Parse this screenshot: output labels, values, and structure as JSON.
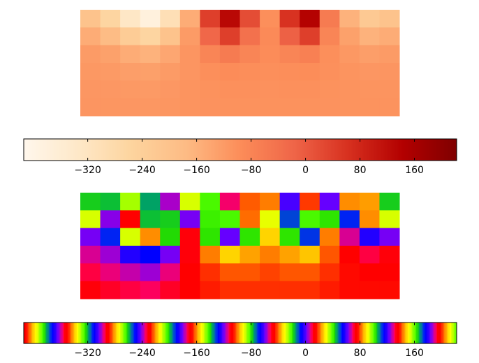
{
  "chart_data": [
    {
      "type": "heatmap",
      "colormap": "OrRd",
      "clim": [
        -414,
        222
      ],
      "ticks": [
        {
          "value": -320,
          "label": "−320"
        },
        {
          "value": -240,
          "label": "−240"
        },
        {
          "value": -160,
          "label": "−160"
        },
        {
          "value": -80,
          "label": "−80"
        },
        0,
        80,
        160
      ],
      "z": [
        [
          -200,
          -260,
          -330,
          -380,
          -300,
          -150,
          40,
          130,
          20,
          -100,
          60,
          140,
          -60,
          -160,
          -220,
          -200
        ],
        [
          -150,
          -180,
          -230,
          -260,
          -200,
          -120,
          -20,
          40,
          -40,
          -90,
          -10,
          40,
          -80,
          -130,
          -160,
          -150
        ],
        [
          -120,
          -130,
          -150,
          -160,
          -140,
          -110,
          -80,
          -60,
          -80,
          -95,
          -80,
          -70,
          -100,
          -115,
          -125,
          -120
        ],
        [
          -115,
          -118,
          -125,
          -128,
          -120,
          -110,
          -100,
          -95,
          -98,
          -100,
          -98,
          -96,
          -102,
          -108,
          -112,
          -110
        ],
        [
          -112,
          -114,
          -116,
          -118,
          -114,
          -108,
          -104,
          -102,
          -102,
          -103,
          -102,
          -102,
          -104,
          -106,
          -108,
          -108
        ],
        [
          -110,
          -111,
          -112,
          -113,
          -111,
          -108,
          -105,
          -104,
          -104,
          -104,
          -104,
          -104,
          -105,
          -106,
          -106,
          -106
        ]
      ]
    },
    {
      "type": "heatmap",
      "colormap": "prism",
      "clim": [
        -414,
        222
      ],
      "ticks": [
        {
          "value": -320,
          "label": "−320"
        },
        {
          "value": -240,
          "label": "−240"
        },
        {
          "value": -160,
          "label": "−160"
        },
        {
          "value": -80,
          "label": "−80"
        },
        0,
        80,
        160
      ],
      "z": [
        [
          -200,
          -260,
          -330,
          -380,
          -300,
          -150,
          40,
          130,
          20,
          -100,
          60,
          140,
          -60,
          -160,
          -220,
          -200
        ],
        [
          -150,
          -180,
          -230,
          -260,
          -200,
          -120,
          -20,
          40,
          -40,
          -90,
          -10,
          40,
          -80,
          -130,
          -160,
          -150
        ],
        [
          -120,
          -130,
          -150,
          -160,
          -140,
          -110,
          -80,
          -60,
          -80,
          -95,
          -80,
          -70,
          -100,
          -115,
          -125,
          -120
        ],
        [
          -115,
          -118,
          -125,
          -128,
          -120,
          -110,
          -100,
          -95,
          -98,
          -100,
          -98,
          -96,
          -102,
          -108,
          -112,
          -110
        ],
        [
          -112,
          -114,
          -116,
          -118,
          -114,
          -108,
          -104,
          -102,
          -102,
          -103,
          -102,
          -102,
          -104,
          -106,
          -108,
          -108
        ],
        [
          -110,
          -111,
          -112,
          -113,
          -111,
          -108,
          -105,
          -104,
          -104,
          -104,
          -104,
          -104,
          -105,
          -106,
          -106,
          -106
        ]
      ]
    }
  ]
}
